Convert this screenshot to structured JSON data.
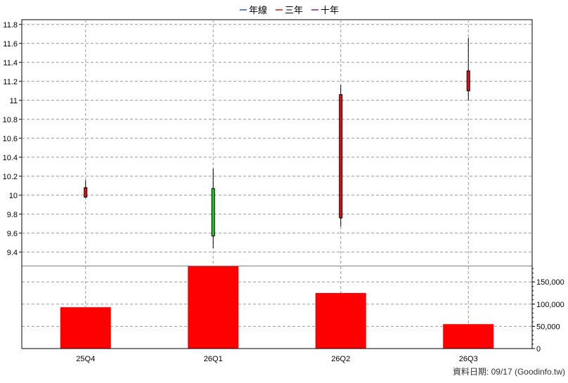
{
  "legend": {
    "items": [
      {
        "label": "年線",
        "color": "#1f5fd6"
      },
      {
        "label": "三年",
        "color": "#e01010"
      },
      {
        "label": "十年",
        "color": "#9b1a6b"
      }
    ]
  },
  "footer": {
    "date_text": "資料日期: 09/17  (Goodinfo.tw)"
  },
  "chart_data": [
    {
      "type": "candlestick",
      "categories": [
        "25Q4",
        "26Q1",
        "26Q2",
        "26Q3"
      ],
      "ylim": [
        9.25,
        11.85
      ],
      "yticks": [
        9.4,
        9.6,
        9.8,
        10,
        10.2,
        10.4,
        10.6,
        10.8,
        11,
        11.2,
        11.4,
        11.6,
        11.8
      ],
      "grid": true,
      "up_color": "#e01010",
      "down_color": "#22cc22",
      "candles": [
        {
          "category": "25Q4",
          "open": 9.98,
          "high": 10.16,
          "low": 9.97,
          "close": 10.08
        },
        {
          "category": "26Q1",
          "open": 10.07,
          "high": 10.28,
          "low": 9.44,
          "close": 9.57
        },
        {
          "category": "26Q2",
          "open": 9.76,
          "high": 11.16,
          "low": 9.67,
          "close": 11.06
        },
        {
          "category": "26Q3",
          "open": 11.1,
          "high": 11.66,
          "low": 11.0,
          "close": 11.31
        }
      ]
    },
    {
      "type": "bar",
      "categories": [
        "25Q4",
        "26Q1",
        "26Q2",
        "26Q3"
      ],
      "values": [
        93000,
        186000,
        125000,
        55000
      ],
      "ylim": [
        0,
        185000
      ],
      "yticks": [
        0,
        50000,
        100000,
        150000
      ],
      "ytick_labels": [
        "0",
        "50,000",
        "100,000",
        "150,000"
      ],
      "bar_color": "#ff0000",
      "grid": true
    }
  ]
}
